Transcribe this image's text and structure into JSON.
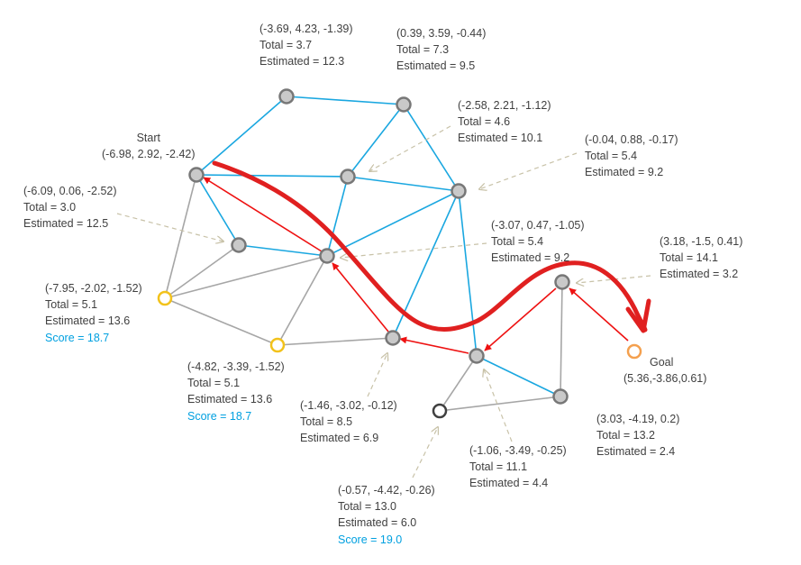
{
  "labels": {
    "start": {
      "title": "Start",
      "coord": "(-6.98, 2.92, -2.42)"
    },
    "goal": {
      "title": "Goal",
      "coord": "(5.36,-3.86,0.61)"
    },
    "n_top1": {
      "coord": "(-3.69, 4.23, -1.39)",
      "total": "Total = 3.7",
      "est": "Estimated = 12.3"
    },
    "n_top2": {
      "coord": "(0.39, 3.59, -0.44)",
      "total": "Total = 7.3",
      "est": "Estimated = 9.5"
    },
    "n_mid1": {
      "coord": "(-2.58, 2.21, -1.12)",
      "total": "Total = 4.6",
      "est": "Estimated = 10.1"
    },
    "n_mid2": {
      "coord": "(-0.04, 0.88, -0.17)",
      "total": "Total = 5.4",
      "est": "Estimated = 9.2"
    },
    "n_left1": {
      "coord": "(-6.09, 0.06, -2.52)",
      "total": "Total = 3.0",
      "est": "Estimated = 12.5"
    },
    "n_center": {
      "coord": "(-3.07, 0.47, -1.05)",
      "total": "Total = 5.4",
      "est": "Estimated = 9.2"
    },
    "n_right1": {
      "coord": "(3.18, -1.5, 0.41)",
      "total": "Total = 14.1",
      "est": "Estimated = 3.2"
    },
    "n_yellow1": {
      "coord": "(-7.95, -2.02, -1.52)",
      "total": "Total = 5.1",
      "est": "Estimated = 13.6",
      "score": "Score = 18.7"
    },
    "n_yellow2": {
      "coord": "(-4.82, -3.39, -1.52)",
      "total": "Total = 5.1",
      "est": "Estimated = 13.6",
      "score": "Score = 18.7"
    },
    "n_low1": {
      "coord": "(-1.46, -3.02, -0.12)",
      "total": "Total = 8.5",
      "est": "Estimated = 6.9"
    },
    "n_right2": {
      "coord": "(3.03, -4.19, 0.2)",
      "total": "Total = 13.2",
      "est": "Estimated = 2.4"
    },
    "n_low2": {
      "coord": "(-1.06, -3.49, -0.25)",
      "total": "Total = 11.1",
      "est": "Estimated = 4.4"
    },
    "n_dark": {
      "coord": "(-0.57, -4.42, -0.26)",
      "total": "Total = 13.0",
      "est": "Estimated = 6.0",
      "score": "Score = 19.0"
    }
  },
  "colors": {
    "edge_blue": "#1aa7e0",
    "edge_gray": "#a6a6a6",
    "node_fill": "#c9c9c9",
    "node_stroke": "#777777",
    "frontier": "#f2c21b",
    "goal": "#f4a04e",
    "dark_node": "#404040",
    "path_arrow": "#ee1111",
    "hand_path": "#e02020",
    "leader": "#c8c2a8",
    "score_text": "#00a0e0"
  }
}
